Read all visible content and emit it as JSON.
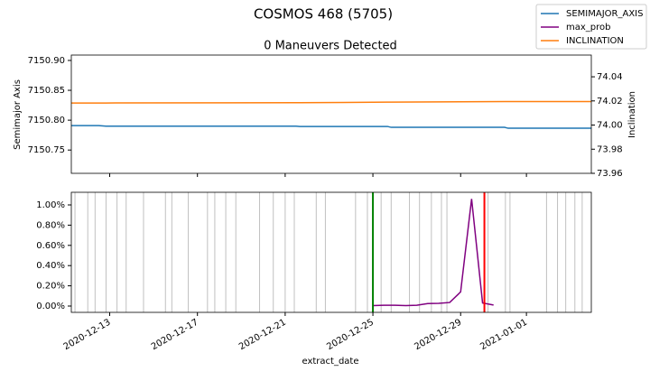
{
  "suptitle": "COSMOS 468 (5705)",
  "chart_data": [
    {
      "type": "line",
      "title": "0 Maneuvers Detected",
      "ylabel": "Semimajor Axis",
      "y2label": "Inclination",
      "xlim": [
        "2020-12-11T06:00",
        "2021-01-03T23:00"
      ],
      "ylim": [
        7150.711,
        7150.909
      ],
      "yticks": [
        7150.75,
        {
          "value": 7150.8,
          "label": "7150.80"
        },
        7150.85,
        {
          "value": 7150.9,
          "label": "7150.90"
        }
      ],
      "y2lim": [
        73.96,
        74.058
      ],
      "y2ticks": [
        73.96,
        73.98,
        {
          "value": 74,
          "label": "74.00"
        },
        74.02,
        74.04
      ],
      "x": [
        "2020-12-11T06:00",
        "2020-12-12T12:00",
        "2020-12-12T20:00",
        "2020-12-21T12:00",
        "2020-12-21T16:00",
        "2020-12-25T16:00",
        "2020-12-25T20:00",
        "2020-12-31T00:00",
        "2020-12-31T04:00",
        "2021-01-03T23:00"
      ],
      "series": [
        {
          "name": "SEMIMAJOR_AXIS",
          "color": "#1f77b4",
          "values": [
            7150.791,
            7150.791,
            7150.79,
            7150.79,
            7150.7895,
            7150.7895,
            7150.788,
            7150.788,
            7150.7865,
            7150.7865
          ]
        },
        {
          "name": "INCLINATION",
          "color": "#ff7f0e",
          "axis": "y2",
          "values": [
            74.0183,
            74.0183,
            74.0183,
            74.0185,
            74.0185,
            74.019,
            74.019,
            74.0195,
            74.0195,
            74.0195
          ]
        }
      ]
    },
    {
      "type": "line",
      "xlabel": "extract_date",
      "xlim": [
        "2020-12-11T06:00",
        "2021-01-03T23:00"
      ],
      "ylim": [
        -0.0625,
        1.125
      ],
      "yticks": [
        {
          "value": 0,
          "label": "0.00%"
        },
        {
          "value": 0.2,
          "label": "0.20%"
        },
        {
          "value": 0.4,
          "label": "0.40%"
        },
        {
          "value": 0.6,
          "label": "0.60%"
        },
        {
          "value": 0.8,
          "label": "0.80%"
        },
        {
          "value": 1,
          "label": "1.00%"
        }
      ],
      "xticks": [
        "2020-12-13",
        "2020-12-17",
        "2020-12-21",
        "2020-12-25",
        "2020-12-29",
        "2021-01-01"
      ],
      "x": [
        "2020-12-25T00:00",
        "2020-12-25T12:00",
        "2020-12-26T00:00",
        "2020-12-26T12:00",
        "2020-12-27T00:00",
        "2020-12-27T12:00",
        "2020-12-28T00:00",
        "2020-12-28T12:00",
        "2020-12-29T00:00",
        "2020-12-29T12:00",
        "2020-12-30T00:00",
        "2020-12-30T12:00"
      ],
      "series": [
        {
          "name": "max_prob",
          "color": "#800080",
          "values": [
            0.005,
            0.008,
            0.008,
            0.005,
            0.008,
            0.025,
            0.027,
            0.035,
            0.14,
            1.06,
            0.03,
            0.01
          ]
        }
      ],
      "event_color": "#c0c0c0",
      "events": [
        "2020-12-11T10:00",
        "2020-12-12T00:00",
        "2020-12-12T08:00",
        "2020-12-12T20:00",
        "2020-12-13T08:00",
        "2020-12-13T18:00",
        "2020-12-14T13:00",
        "2020-12-15T13:00",
        "2020-12-15T20:00",
        "2020-12-16T14:00",
        "2020-12-17T11:00",
        "2020-12-17T19:00",
        "2020-12-18T07:00",
        "2020-12-18T18:00",
        "2020-12-19T20:00",
        "2020-12-20T11:00",
        "2020-12-21T00:00",
        "2020-12-21T10:00",
        "2020-12-22T10:00",
        "2020-12-22T20:00",
        "2020-12-24T05:00",
        "2020-12-24T18:00",
        "2020-12-25T09:00",
        "2020-12-25T20:00",
        "2020-12-26T16:00",
        "2020-12-27T03:00",
        "2020-12-27T16:00",
        "2020-12-28T03:00",
        "2020-12-28T09:00",
        "2020-12-30T06:00",
        "2020-12-31T01:00",
        "2020-12-31T06:00",
        "2021-01-01T22:00",
        "2021-01-02T10:00",
        "2021-01-02T19:00",
        "2021-01-03T05:00",
        "2021-01-03T13:00"
      ],
      "markers": [
        {
          "x": "2020-12-25T00:00",
          "color": "#008000"
        },
        {
          "x": "2020-12-30T02:00",
          "color": "#ff0000"
        }
      ]
    }
  ]
}
